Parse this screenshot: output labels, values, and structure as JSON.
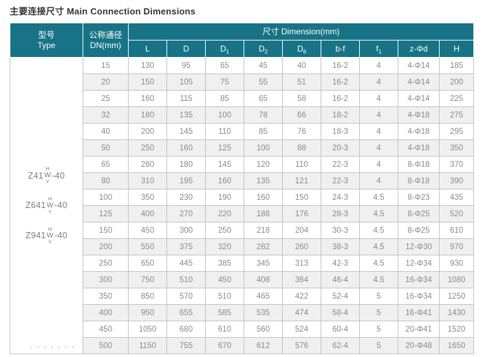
{
  "colors": {
    "header_teal": "#177385",
    "alt_row_gray": "#f0f0f0",
    "grid_border": "#c3c3c3",
    "body_text": "#8a8a8a",
    "title_text": "#333333"
  },
  "page": {
    "title": "主要连接尺寸 Main Connection Dimensions"
  },
  "table": {
    "header": {
      "type_zh": "型号",
      "type_en": "Type",
      "dn_zh": "公称通径",
      "dn_en": "DN(mm)",
      "dimension_group": "尺寸 Dimension(mm)",
      "columns": [
        {
          "base": "L",
          "sub": ""
        },
        {
          "base": "D",
          "sub": ""
        },
        {
          "base": "D",
          "sub": "1"
        },
        {
          "base": "D",
          "sub": "2"
        },
        {
          "base": "D",
          "sub": "6"
        },
        {
          "base": "b-f",
          "sub": ""
        },
        {
          "base": "f",
          "sub": "1"
        },
        {
          "base": "z-Φd",
          "sub": ""
        },
        {
          "base": "H",
          "sub": ""
        }
      ]
    },
    "type_models": [
      {
        "prefix": "Z41",
        "top": "H",
        "mid": "W",
        "bottom": "Y",
        "suffix": "-40"
      },
      {
        "prefix": "Z641",
        "top": "H",
        "mid": "W",
        "bottom": "Y",
        "suffix": "-40"
      },
      {
        "prefix": "Z941",
        "top": "H",
        "mid": "W",
        "bottom": "Y",
        "suffix": "-40"
      }
    ],
    "type_footer": "- - - - - - -",
    "rows": [
      [
        "15",
        "130",
        "95",
        "65",
        "45",
        "40",
        "16-2",
        "4",
        "4-Φ14",
        "185"
      ],
      [
        "20",
        "150",
        "105",
        "75",
        "55",
        "51",
        "16-2",
        "4",
        "4-Φ14",
        "200"
      ],
      [
        "25",
        "160",
        "115",
        "85",
        "65",
        "58",
        "16-2",
        "4",
        "4-Φ14",
        "225"
      ],
      [
        "32",
        "180",
        "135",
        "100",
        "78",
        "66",
        "18-2",
        "4",
        "4-Φ18",
        "275"
      ],
      [
        "40",
        "200",
        "145",
        "110",
        "85",
        "76",
        "18-3",
        "4",
        "4-Φ18",
        "295"
      ],
      [
        "50",
        "250",
        "160",
        "125",
        "100",
        "88",
        "20-3",
        "4",
        "4-Φ18",
        "350"
      ],
      [
        "65",
        "280",
        "180",
        "145",
        "120",
        "110",
        "22-3",
        "4",
        "8-Φ18",
        "370"
      ],
      [
        "80",
        "310",
        "195",
        "160",
        "135",
        "121",
        "22-3",
        "4",
        "8-Φ18",
        "390"
      ],
      [
        "100",
        "350",
        "230",
        "190",
        "160",
        "150",
        "24-3",
        "4.5",
        "8-Φ23",
        "435"
      ],
      [
        "125",
        "400",
        "270",
        "220",
        "188",
        "176",
        "28-3",
        "4.5",
        "8-Φ25",
        "520"
      ],
      [
        "150",
        "450",
        "300",
        "250",
        "218",
        "204",
        "30-3",
        "4.5",
        "8-Φ25",
        "610"
      ],
      [
        "200",
        "550",
        "375",
        "320",
        "282",
        "260",
        "38-3",
        "4.5",
        "12-Φ30",
        "970"
      ],
      [
        "250",
        "650",
        "445",
        "385",
        "345",
        "313",
        "42-3",
        "4.5",
        "12-Φ34",
        "930"
      ],
      [
        "300",
        "750",
        "510",
        "450",
        "408",
        "364",
        "46-4",
        "4.5",
        "16-Φ34",
        "1080"
      ],
      [
        "350",
        "850",
        "570",
        "510",
        "465",
        "422",
        "52-4",
        "5",
        "16-Φ34",
        "1250"
      ],
      [
        "400",
        "950",
        "655",
        "585",
        "535",
        "474",
        "58-4",
        "5",
        "16-Φ41",
        "1430"
      ],
      [
        "450",
        "1050",
        "680",
        "610",
        "560",
        "524",
        "60-4",
        "5",
        "20-Φ41",
        "1520"
      ],
      [
        "500",
        "1150",
        "755",
        "670",
        "612",
        "576",
        "62-4",
        "5",
        "20-Φ48",
        "1650"
      ]
    ]
  }
}
